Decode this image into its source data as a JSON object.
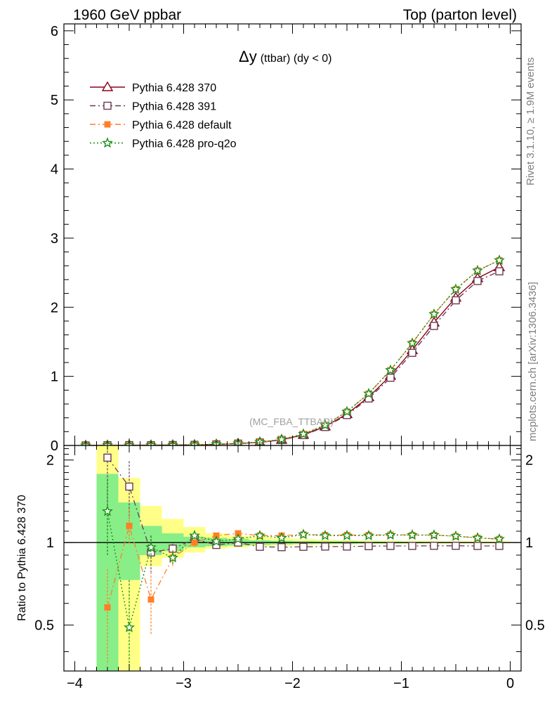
{
  "header": {
    "left": "1960 GeV ppbar",
    "right": "Top (parton level)"
  },
  "side_labels": {
    "rivet": "Rivet 3.1.10, ≥ 1.9M events",
    "mcplots": "mcplots.cern.ch [arXiv:1306.3436]"
  },
  "chart_data": [
    {
      "type": "line",
      "title": "Δy (ttbar) (dy < 0)",
      "title_main": "Δy",
      "title_sub": "(ttbar) (dy < 0)",
      "annotation": "(MC_FBA_TTBAR)",
      "xlim": [
        -4.1,
        0.1
      ],
      "ylim": [
        0,
        6.1
      ],
      "ytick_labels": [
        "0",
        "1",
        "2",
        "3",
        "4",
        "5",
        "6"
      ],
      "x": [
        -3.9,
        -3.7,
        -3.5,
        -3.3,
        -3.1,
        -2.9,
        -2.7,
        -2.5,
        -2.3,
        -2.1,
        -1.9,
        -1.7,
        -1.5,
        -1.3,
        -1.1,
        -0.9,
        -0.7,
        -0.5,
        -0.3,
        -0.1
      ],
      "series": [
        {
          "name": "Pythia 6.428 370",
          "color": "#8b0020",
          "marker": "triangle-open",
          "dash": "solid",
          "values": [
            0.0,
            0.002,
            0.003,
            0.004,
            0.006,
            0.009,
            0.016,
            0.027,
            0.046,
            0.082,
            0.155,
            0.275,
            0.455,
            0.7,
            1.01,
            1.38,
            1.78,
            2.14,
            2.42,
            2.58
          ]
        },
        {
          "name": "Pythia 6.428 391",
          "color": "#6b3a52",
          "marker": "square-open",
          "dash": "dashdot",
          "values": [
            0.0,
            0.004,
            0.005,
            0.004,
            0.006,
            0.009,
            0.016,
            0.027,
            0.044,
            0.079,
            0.15,
            0.267,
            0.44,
            0.68,
            0.98,
            1.34,
            1.73,
            2.1,
            2.38,
            2.52
          ]
        },
        {
          "name": "Pythia 6.428 default",
          "color": "#ff7f27",
          "marker": "square-filled",
          "dash": "dashdot",
          "values": [
            0.0,
            0.001,
            0.003,
            0.002,
            0.005,
            0.009,
            0.017,
            0.029,
            0.049,
            0.087,
            0.166,
            0.295,
            0.49,
            0.75,
            1.09,
            1.48,
            1.9,
            2.26,
            2.53,
            2.68
          ]
        },
        {
          "name": "Pythia 6.428 pro-q2o",
          "color": "#128c12",
          "marker": "star",
          "dash": "dotted",
          "values": [
            0.0,
            0.003,
            0.002,
            0.004,
            0.005,
            0.009,
            0.017,
            0.029,
            0.049,
            0.087,
            0.166,
            0.295,
            0.49,
            0.75,
            1.09,
            1.48,
            1.9,
            2.26,
            2.53,
            2.68
          ]
        }
      ]
    },
    {
      "type": "line",
      "ylabel": "Ratio to Pythia 6.428 370",
      "xlim": [
        -4.1,
        0.1
      ],
      "ylim": [
        0.34,
        2.26
      ],
      "xtick_labels": [
        "−4",
        "−3",
        "−2",
        "−1",
        "0"
      ],
      "ytick_labels": [
        "0.5",
        "1",
        "2"
      ],
      "reference_line": 1,
      "x": [
        -3.7,
        -3.5,
        -3.3,
        -3.1,
        -2.9,
        -2.7,
        -2.5,
        -2.3,
        -2.1,
        -1.9,
        -1.7,
        -1.5,
        -1.3,
        -1.1,
        -0.9,
        -0.7,
        -0.5,
        -0.3,
        -0.1
      ],
      "band_edges": [
        -3.8,
        -3.6,
        -3.4,
        -3.2,
        -3.0,
        -2.8,
        -2.6,
        -2.4,
        -2.2,
        -2.0,
        -1.8,
        -1.6,
        -1.4,
        -1.2,
        -1.0,
        -0.8,
        -0.6,
        -0.4,
        -0.2,
        0.0
      ],
      "band_inner": [
        [
          0.3,
          1.78
        ],
        [
          0.73,
          1.4
        ],
        [
          0.9,
          1.15
        ],
        [
          0.93,
          1.08
        ],
        [
          0.96,
          1.05
        ],
        [
          0.97,
          1.04
        ],
        [
          0.975,
          1.03
        ],
        [
          0.98,
          1.02
        ],
        [
          0.985,
          1.015
        ],
        [
          0.988,
          1.012
        ],
        [
          0.99,
          1.01
        ],
        [
          0.99,
          1.01
        ],
        [
          0.992,
          1.008
        ],
        [
          0.993,
          1.007
        ],
        [
          0.994,
          1.006
        ],
        [
          0.995,
          1.005
        ],
        [
          0.995,
          1.005
        ],
        [
          0.996,
          1.004
        ],
        [
          0.996,
          1.004
        ]
      ],
      "band_outer": [
        [
          0.3,
          2.26
        ],
        [
          0.3,
          1.72
        ],
        [
          0.82,
          1.36
        ],
        [
          0.88,
          1.22
        ],
        [
          0.92,
          1.14
        ],
        [
          0.95,
          1.08
        ],
        [
          0.96,
          1.06
        ],
        [
          0.97,
          1.05
        ],
        [
          0.975,
          1.04
        ],
        [
          0.98,
          1.03
        ],
        [
          0.983,
          1.025
        ],
        [
          0.985,
          1.02
        ],
        [
          0.987,
          1.017
        ],
        [
          0.988,
          1.015
        ],
        [
          0.99,
          1.013
        ],
        [
          0.99,
          1.012
        ],
        [
          0.991,
          1.011
        ],
        [
          0.992,
          1.01
        ],
        [
          0.993,
          1.009
        ]
      ],
      "band_colors": {
        "inner": "#88ee88",
        "outer": "#ffff88"
      },
      "series": [
        {
          "name": "Pythia 6.428 391",
          "color": "#6b3a52",
          "marker": "square-open",
          "dash": "dashdot",
          "values": [
            2.04,
            1.6,
            0.92,
            0.95,
            1.03,
            0.98,
            1.0,
            0.965,
            0.962,
            0.965,
            0.967,
            0.967,
            0.97,
            0.972,
            0.972,
            0.973,
            0.973,
            0.972,
            0.972
          ],
          "errors": [
            0.7,
            0.38,
            0.14,
            0.04,
            0.03,
            0.02,
            0.01,
            0.005,
            0.005,
            0.005,
            0.005,
            0.005,
            0.005,
            0.005,
            0.005,
            0.005,
            0.005,
            0.005,
            0.005
          ]
        },
        {
          "name": "Pythia 6.428 default",
          "color": "#ff7f27",
          "marker": "square-filled",
          "dash": "dashdot",
          "values": [
            0.58,
            1.15,
            0.62,
            0.88,
            1.0,
            1.06,
            1.08,
            1.06,
            1.06,
            1.07,
            1.065,
            1.065,
            1.065,
            1.068,
            1.065,
            1.065,
            1.055,
            1.04,
            1.03
          ],
          "errors": [
            0.22,
            0.17,
            0.16,
            0.06,
            0.04,
            0.02,
            0.01,
            0.005,
            0.005,
            0.005,
            0.005,
            0.005,
            0.005,
            0.005,
            0.005,
            0.005,
            0.005,
            0.005,
            0.005
          ]
        },
        {
          "name": "Pythia 6.428 pro-q2o",
          "color": "#128c12",
          "marker": "star",
          "dash": "dotted",
          "values": [
            1.3,
            0.49,
            0.96,
            0.88,
            1.06,
            1.01,
            1.03,
            1.06,
            1.04,
            1.07,
            1.06,
            1.06,
            1.06,
            1.065,
            1.065,
            1.065,
            1.055,
            1.04,
            1.03
          ],
          "errors": [
            0.4,
            0.24,
            0.1,
            0.05,
            0.03,
            0.02,
            0.01,
            0.005,
            0.005,
            0.005,
            0.005,
            0.005,
            0.005,
            0.005,
            0.005,
            0.005,
            0.005,
            0.005,
            0.005
          ]
        },
        {
          "name": "Pythia 6.428 370",
          "color": "#8b0020",
          "marker": "triangle-open",
          "dash": "solid",
          "values": [
            1,
            1,
            1,
            1,
            1,
            1,
            1,
            1,
            1,
            1,
            1,
            1,
            1,
            1,
            1,
            1,
            1,
            1,
            1
          ],
          "errors": [
            0,
            0,
            0,
            0,
            0,
            0,
            0,
            0,
            0,
            0,
            0,
            0,
            0,
            0,
            0,
            0,
            0,
            0,
            0
          ]
        }
      ]
    }
  ]
}
